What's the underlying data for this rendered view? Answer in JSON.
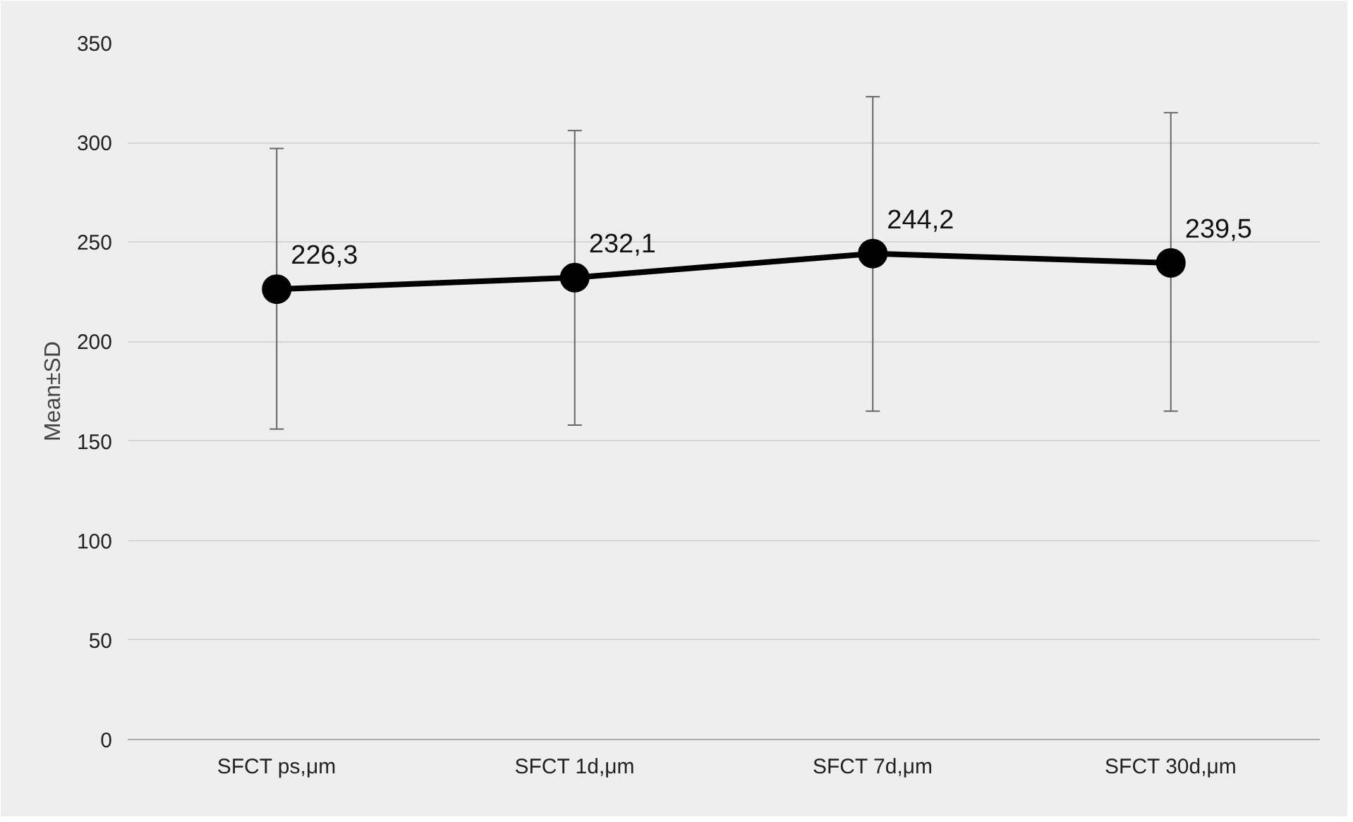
{
  "chart_data": {
    "type": "line",
    "ylabel": "Mean±SD",
    "categories": [
      "SFCT ps,μm",
      "SFCT 1d,μm",
      "SFCT 7d,μm",
      "SFCT 30d,μm"
    ],
    "values": [
      226.3,
      232.1,
      244.2,
      239.5
    ],
    "value_labels": [
      "226,3",
      "232,1",
      "244,2",
      "239,5"
    ],
    "errors": [
      [
        156,
        297
      ],
      [
        158,
        306
      ],
      [
        165,
        323
      ],
      [
        165,
        315
      ]
    ],
    "color": "#000000",
    "marker": "circle",
    "line_style": "solid",
    "ylim": [
      0,
      350
    ],
    "yticks": [
      0,
      50,
      100,
      150,
      200,
      250,
      300,
      350
    ],
    "grid": "y"
  }
}
